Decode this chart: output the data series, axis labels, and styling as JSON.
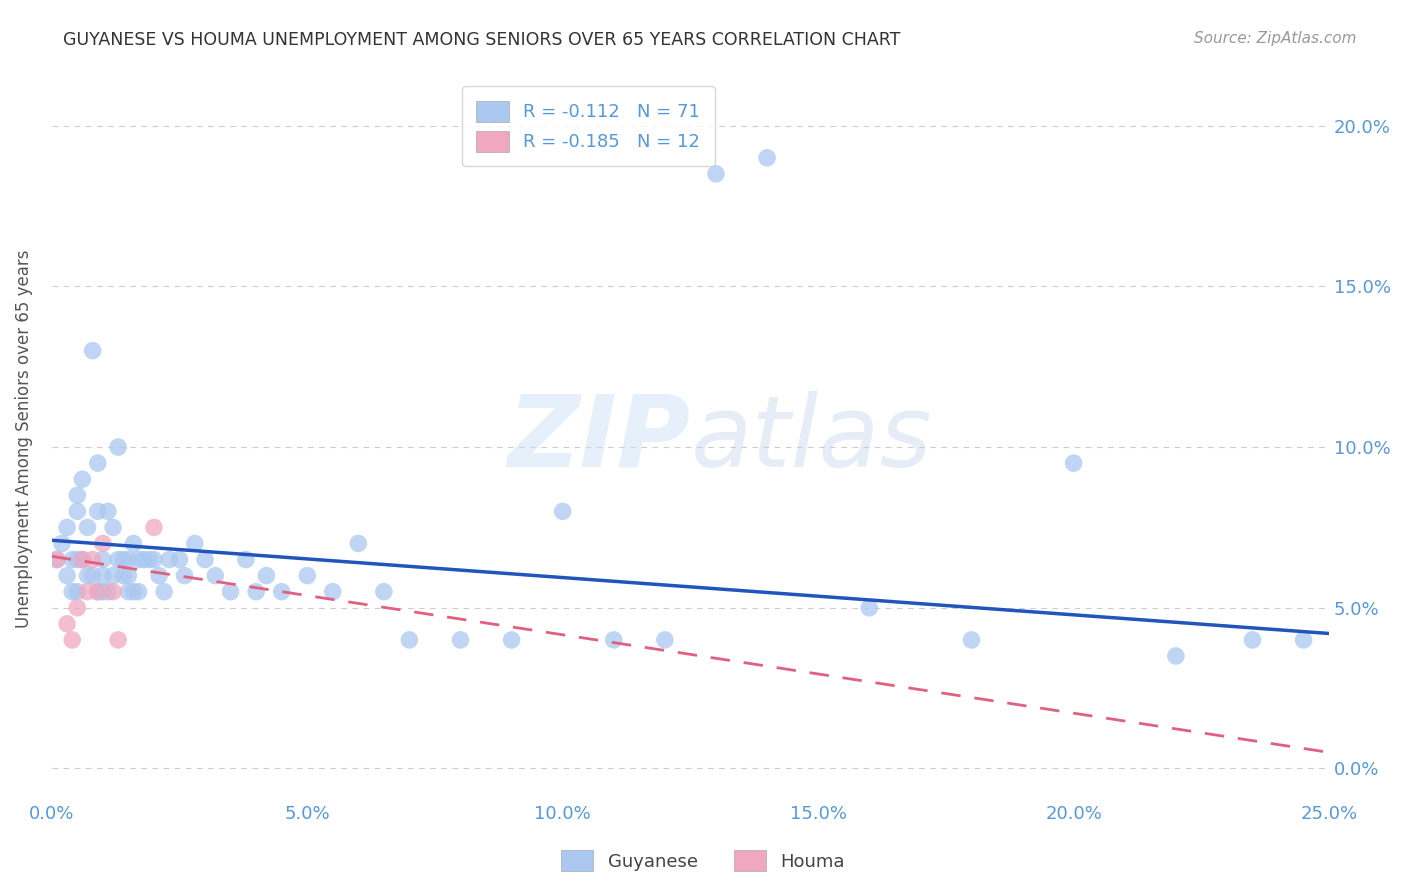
{
  "title": "GUYANESE VS HOUMA UNEMPLOYMENT AMONG SENIORS OVER 65 YEARS CORRELATION CHART",
  "source": "Source: ZipAtlas.com",
  "ylabel": "Unemployment Among Seniors over 65 years",
  "xlim": [
    0.0,
    0.25
  ],
  "ylim": [
    -0.01,
    0.215
  ],
  "legend1_label": "R = -0.112   N = 71",
  "legend2_label": "R = -0.185   N = 12",
  "watermark_zip": "ZIP",
  "watermark_atlas": "atlas",
  "guyanese_color": "#aac8f0",
  "houma_color": "#f0a8c0",
  "guyanese_line_color": "#2255bb",
  "houma_line_color": "#e06080",
  "background_color": "#ffffff",
  "grid_color": "#cccccc",
  "title_color": "#333333",
  "tick_color": "#5599dd",
  "guyanese_x": [
    0.001,
    0.002,
    0.003,
    0.003,
    0.004,
    0.004,
    0.005,
    0.005,
    0.005,
    0.005,
    0.006,
    0.006,
    0.007,
    0.007,
    0.008,
    0.008,
    0.009,
    0.009,
    0.009,
    0.01,
    0.01,
    0.01,
    0.011,
    0.011,
    0.012,
    0.012,
    0.013,
    0.013,
    0.014,
    0.014,
    0.015,
    0.015,
    0.015,
    0.016,
    0.016,
    0.017,
    0.017,
    0.018,
    0.019,
    0.02,
    0.021,
    0.022,
    0.023,
    0.025,
    0.026,
    0.028,
    0.03,
    0.032,
    0.035,
    0.038,
    0.04,
    0.042,
    0.045,
    0.05,
    0.055,
    0.06,
    0.065,
    0.07,
    0.08,
    0.09,
    0.1,
    0.11,
    0.12,
    0.13,
    0.14,
    0.16,
    0.18,
    0.2,
    0.22,
    0.235,
    0.245
  ],
  "guyanese_y": [
    0.065,
    0.07,
    0.075,
    0.06,
    0.065,
    0.055,
    0.085,
    0.08,
    0.065,
    0.055,
    0.09,
    0.065,
    0.075,
    0.06,
    0.13,
    0.06,
    0.095,
    0.08,
    0.055,
    0.065,
    0.06,
    0.055,
    0.08,
    0.055,
    0.075,
    0.06,
    0.1,
    0.065,
    0.065,
    0.06,
    0.065,
    0.06,
    0.055,
    0.07,
    0.055,
    0.065,
    0.055,
    0.065,
    0.065,
    0.065,
    0.06,
    0.055,
    0.065,
    0.065,
    0.06,
    0.07,
    0.065,
    0.06,
    0.055,
    0.065,
    0.055,
    0.06,
    0.055,
    0.06,
    0.055,
    0.07,
    0.055,
    0.04,
    0.04,
    0.04,
    0.08,
    0.04,
    0.04,
    0.185,
    0.19,
    0.05,
    0.04,
    0.095,
    0.035,
    0.04,
    0.04
  ],
  "houma_x": [
    0.001,
    0.003,
    0.004,
    0.005,
    0.006,
    0.007,
    0.008,
    0.009,
    0.01,
    0.012,
    0.013,
    0.02
  ],
  "houma_y": [
    0.065,
    0.045,
    0.04,
    0.05,
    0.065,
    0.055,
    0.065,
    0.055,
    0.07,
    0.055,
    0.04,
    0.075
  ],
  "xtick_vals": [
    0.0,
    0.05,
    0.1,
    0.15,
    0.2,
    0.25
  ],
  "ytick_vals": [
    0.0,
    0.05,
    0.1,
    0.15,
    0.2
  ],
  "guyanese_trend_x": [
    0.0,
    0.25
  ],
  "guyanese_trend_y": [
    0.071,
    0.042
  ],
  "houma_trend_x": [
    0.0,
    0.25
  ],
  "houma_trend_y": [
    0.066,
    0.005
  ]
}
